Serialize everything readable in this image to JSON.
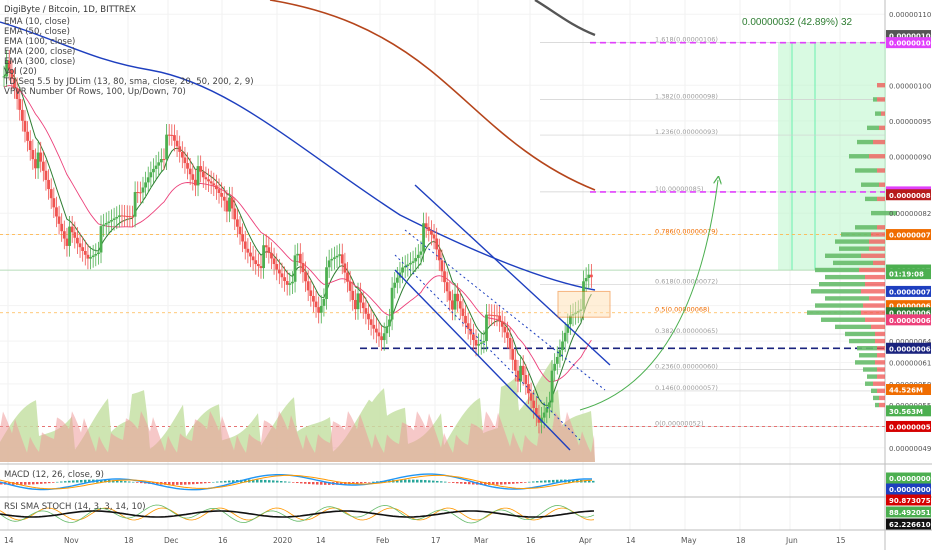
{
  "symbol": "DigiByte / Bitcoin, 1D, BITTREX",
  "indicators": [
    "EMA (10, close)",
    "EMA (50, close)",
    "EMA (100, close)",
    "EMA (200, close)",
    "EMA (300, close)",
    "Vol (20)",
    "TD Seq 5.5 by JDLim (13, 80, sma, close, 20, 50, 200, 2, 9)",
    "VPVR Number Of Rows, 100, Up/Down, 70)"
  ],
  "macd_label": "MACD (12, 26, close, 9)",
  "stoch_label": "RSI SMA STOCH (14, 3, 3, 14, 10)",
  "projection_label": "0.00000032 (42.89%) 32",
  "colors": {
    "up": "#4caf50",
    "down": "#ef5350",
    "ema10": "#2e7d32",
    "ema50": "#ec407a",
    "ema100": "#1e3fbf",
    "ema200": "#b5451b",
    "ema300": "#555555",
    "magenta": "#e040fb",
    "navy": "#1a237e",
    "projection": "#b9f6ca"
  },
  "chart_data": {
    "type": "candlestick",
    "x_ticks": [
      "14",
      "Nov",
      "18",
      "Dec",
      "16",
      "2020",
      "14",
      "Feb",
      "17",
      "Mar",
      "16",
      "Apr",
      "14",
      "May",
      "18",
      "Jun",
      "15"
    ],
    "y_ticks": [
      "0.00000110",
      "0.00000100",
      "0.00000095",
      "0.00000090",
      "0.00000082",
      "0.00000079",
      "0.00000074",
      "0.00000069",
      "0.00000064",
      "0.00000061",
      "0.00000058",
      "0.00000055",
      "0.00000049"
    ],
    "ylim": [
      4.7e-07,
      1.12e-06
    ],
    "fib_levels": [
      {
        "label": "1.618(0.00000106)",
        "value": 1.06e-06
      },
      {
        "label": "1.382(0.00000098)",
        "value": 9.8e-07
      },
      {
        "label": "1.236(0.00000093)",
        "value": 9.3e-07
      },
      {
        "label": "1(0.00000085)",
        "value": 8.5e-07
      },
      {
        "label": "0.786(0.00000079)",
        "value": 7.9e-07
      },
      {
        "label": "0.618(0.00000072)",
        "value": 7.2e-07
      },
      {
        "label": "0.5(0.00000068)",
        "value": 6.8e-07
      },
      {
        "label": "0.382(0.00000065)",
        "value": 6.5e-07
      },
      {
        "label": "0.236(0.00000060)",
        "value": 6e-07
      },
      {
        "label": "0.146(0.00000057)",
        "value": 5.7e-07
      },
      {
        "label": "0(0.00000052)",
        "value": 5.2e-07
      }
    ],
    "price_tags": [
      {
        "label": "0.00000107",
        "value": 1.07e-06,
        "color": "#555555"
      },
      {
        "label": "0.00000106",
        "value": 1.06e-06,
        "color": "#e040fb"
      },
      {
        "label": "0.00000085",
        "value": 8.5e-07,
        "color": "#e040fb"
      },
      {
        "label": "0.00000085",
        "value": 8.46e-07,
        "color": "#b71c1c"
      },
      {
        "label": "0.00000079",
        "value": 7.9e-07,
        "color": "#ef6c00"
      },
      {
        "label": "DGBBTC",
        "value": 7.4e-07,
        "color": "#4caf50"
      },
      {
        "label": "0.00000074",
        "value": 7.4e-07,
        "color": "#4caf50"
      },
      {
        "label": "01:19:08",
        "value": 7.35e-07,
        "color": "#4caf50"
      },
      {
        "label": "0.00000071",
        "value": 7.1e-07,
        "color": "#1e3fbf"
      },
      {
        "label": "0.00000069",
        "value": 6.9e-07,
        "color": "#ef6c00"
      },
      {
        "label": "0.00000068",
        "value": 6.8e-07,
        "color": "#2e7d32"
      },
      {
        "label": "0.00000067",
        "value": 6.7e-07,
        "color": "#ec407a"
      },
      {
        "label": "0.00000063",
        "value": 6.3e-07,
        "color": "#1a237e"
      },
      {
        "label": "44.526M",
        "value": 5.72e-07,
        "color": "#ef6c00"
      },
      {
        "label": "30.563M",
        "value": 5.42e-07,
        "color": "#4caf50"
      },
      {
        "label": "0.00000052",
        "value": 5.2e-07,
        "color": "#d50000"
      }
    ],
    "macd_tags": [
      {
        "label": "0.00000002",
        "color": "#4caf50"
      },
      {
        "label": "0.00000002",
        "color": "#1e3fbf"
      },
      {
        "label": "90.87307587",
        "color": "#d50000"
      }
    ],
    "stoch_tags": [
      {
        "label": "88.49205149",
        "color": "#4caf50"
      },
      {
        "label": "62.22661021",
        "color": "#111111"
      }
    ],
    "close_path": [
      1.03e-06,
      9.9e-07,
      9.4e-07,
      9e-07,
      8.6e-07,
      8.2e-07,
      7.9e-07,
      7.7e-07,
      7.6e-07,
      7.8e-07,
      8e-07,
      8.2e-07,
      8.3e-07,
      8.4e-07,
      8.8e-07,
      9.1e-07,
      9.2e-07,
      9e-07,
      8.8e-07,
      8.6e-07,
      8.6e-07,
      8.5e-07,
      8e-07,
      7.7e-07,
      7.6e-07,
      7.6e-07,
      7.4e-07,
      7.3e-07,
      7.5e-07,
      7.1e-07,
      6.9e-07,
      7.4e-07,
      7.6e-07,
      7.2e-07,
      6.8e-07,
      6.6e-07,
      6.5e-07,
      7e-07,
      7.4e-07,
      7.6e-07,
      7.9e-07,
      7.8e-07,
      7.3e-07,
      6.9e-07,
      6.6e-07,
      6.4e-07,
      6.6e-07,
      6.7e-07,
      6.5e-07,
      6e-07,
      5.6e-07,
      5.3e-07,
      5.7e-07,
      6.2e-07,
      6.8e-07,
      7e-07,
      7.3e-07
    ]
  }
}
